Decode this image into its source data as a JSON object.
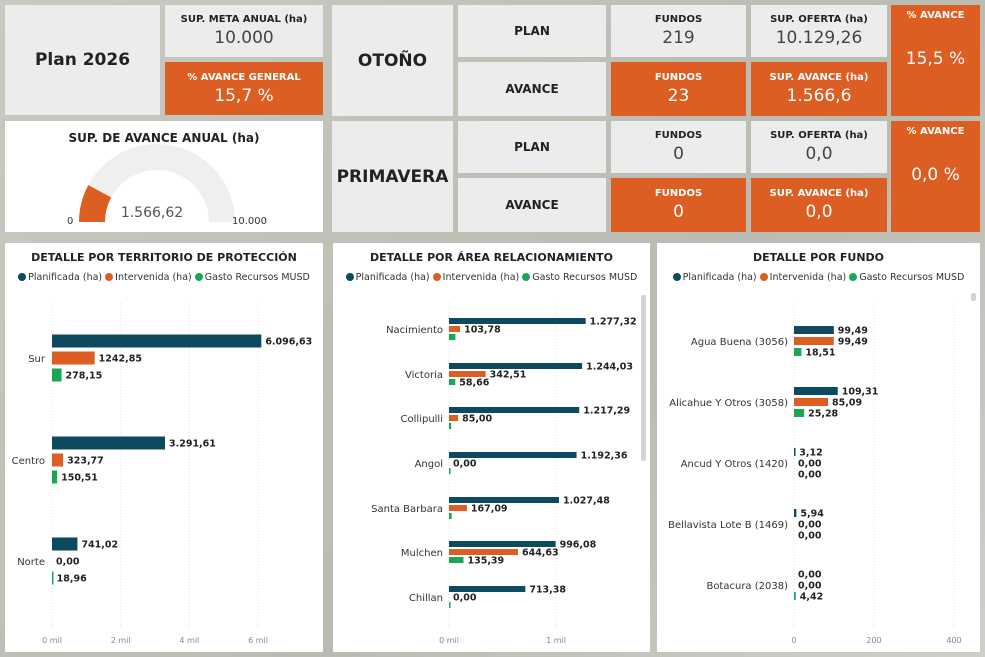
{
  "colors": {
    "orange": "#dd5e22",
    "plan": "#0d4a60",
    "interv": "#dd5e22",
    "gasto": "#1aa753",
    "tile": "#ececec"
  },
  "header": {
    "plan_title": "Plan 2026",
    "meta_label": "SUP. META ANUAL (ha)",
    "meta_value": "10.000",
    "avance_general_label": "% AVANCE GENERAL",
    "avance_general_value": "15,7 %"
  },
  "gauge": {
    "title": "SUP. DE AVANCE ANUAL (ha)",
    "value": 1566.62,
    "value_label": "1.566,62",
    "min_label": "0",
    "max_label": "10.000",
    "min": 0,
    "max": 10000
  },
  "seasons": [
    {
      "name": "OTOÑO",
      "plan": {
        "label": "PLAN",
        "fundos_label": "FUNDOS",
        "fundos": "219",
        "sup_label": "SUP. OFERTA (ha)",
        "sup": "10.129,26"
      },
      "avance": {
        "label": "AVANCE",
        "fundos_label": "FUNDOS",
        "fundos": "23",
        "sup_label": "SUP. AVANCE (ha)",
        "sup": "1.566,6"
      },
      "pct_label": "% AVANCE",
      "pct": "15,5 %"
    },
    {
      "name": "PRIMAVERA",
      "plan": {
        "label": "PLAN",
        "fundos_label": "FUNDOS",
        "fundos": "0",
        "sup_label": "SUP. OFERTA (ha)",
        "sup": "0,0"
      },
      "avance": {
        "label": "AVANCE",
        "fundos_label": "FUNDOS",
        "fundos": "0",
        "sup_label": "SUP. AVANCE (ha)",
        "sup": "0,0"
      },
      "pct_label": "% AVANCE",
      "pct": "0,0 %"
    }
  ],
  "legend": [
    "Planificada (ha)",
    "Intervenida (ha)",
    "Gasto Recursos MUSD"
  ],
  "chart_data": [
    {
      "type": "bar",
      "orientation": "horizontal",
      "title": "DETALLE POR TERRITORIO DE PROTECCIÓN",
      "categories": [
        "Sur",
        "Centro",
        "Norte"
      ],
      "xticks": [
        "0 mil",
        "2 mil",
        "4 mil",
        "6 mil"
      ],
      "xtick_values": [
        0,
        2000,
        4000,
        6000
      ],
      "grid": true,
      "legend": "top",
      "series": [
        {
          "name": "Planificada (ha)",
          "values": [
            6096.63,
            3291.61,
            741.02
          ],
          "labels": [
            "6.096,63",
            "3.291,61",
            "741,02"
          ]
        },
        {
          "name": "Intervenida (ha)",
          "values": [
            1242.85,
            323.77,
            0
          ],
          "labels": [
            "1242,85",
            "323,77",
            "0,00"
          ]
        },
        {
          "name": "Gasto Recursos MUSD",
          "values": [
            278.15,
            150.51,
            18.96
          ],
          "labels": [
            "278,15",
            "150,51",
            "18,96"
          ]
        }
      ]
    },
    {
      "type": "bar",
      "orientation": "horizontal",
      "title": "DETALLE POR ÁREA RELACIONAMIENTO",
      "categories": [
        "Nacimiento",
        "Victoria",
        "Collipulli",
        "Angol",
        "Santa Barbara",
        "Mulchen",
        "Chillan"
      ],
      "xticks": [
        "0 mil",
        "1 mil"
      ],
      "xtick_values": [
        0,
        1000
      ],
      "grid": true,
      "legend": "top",
      "series": [
        {
          "name": "Planificada (ha)",
          "values": [
            1277.32,
            1244.03,
            1217.29,
            1192.36,
            1027.48,
            996.08,
            713.38
          ],
          "labels": [
            "1.277,32",
            "1.244,03",
            "1.217,29",
            "1.192,36",
            "1.027,48",
            "996,08",
            "713,38"
          ]
        },
        {
          "name": "Intervenida (ha)",
          "values": [
            103.78,
            342.51,
            85.0,
            0,
            167.09,
            644.63,
            0
          ],
          "labels": [
            "103,78",
            "342,51",
            "85,00",
            "0,00",
            "167,09",
            "644,63",
            "0,00"
          ]
        },
        {
          "name": "Gasto Recursos MUSD",
          "values": [
            60,
            58.66,
            20,
            10,
            25,
            135.39,
            5
          ],
          "labels": [
            "",
            "58,66",
            "",
            "",
            "",
            "135,39",
            ""
          ]
        }
      ]
    },
    {
      "type": "bar",
      "orientation": "horizontal",
      "title": "DETALLE POR FUNDO",
      "categories": [
        "Agua Buena (3056)",
        "Alicahue Y Otros (3058)",
        "Ancud Y Otros (1420)",
        "Bellavista Lote B (1469)",
        "Botacura (2038)"
      ],
      "xticks": [
        "0",
        "200",
        "400"
      ],
      "xtick_values": [
        0,
        200,
        400
      ],
      "grid": true,
      "legend": "top",
      "series": [
        {
          "name": "Planificada (ha)",
          "values": [
            99.49,
            109.31,
            3.12,
            5.94,
            0
          ],
          "labels": [
            "99,49",
            "109,31",
            "3,12",
            "5,94",
            "0,00"
          ]
        },
        {
          "name": "Intervenida (ha)",
          "values": [
            99.49,
            85.09,
            0,
            0,
            0
          ],
          "labels": [
            "99,49",
            "85,09",
            "0,00",
            "0,00",
            "0,00"
          ]
        },
        {
          "name": "Gasto Recursos MUSD",
          "values": [
            18.51,
            25.28,
            0,
            0,
            4.42
          ],
          "labels": [
            "18,51",
            "25,28",
            "0,00",
            "0,00",
            "4,42"
          ]
        }
      ]
    }
  ]
}
